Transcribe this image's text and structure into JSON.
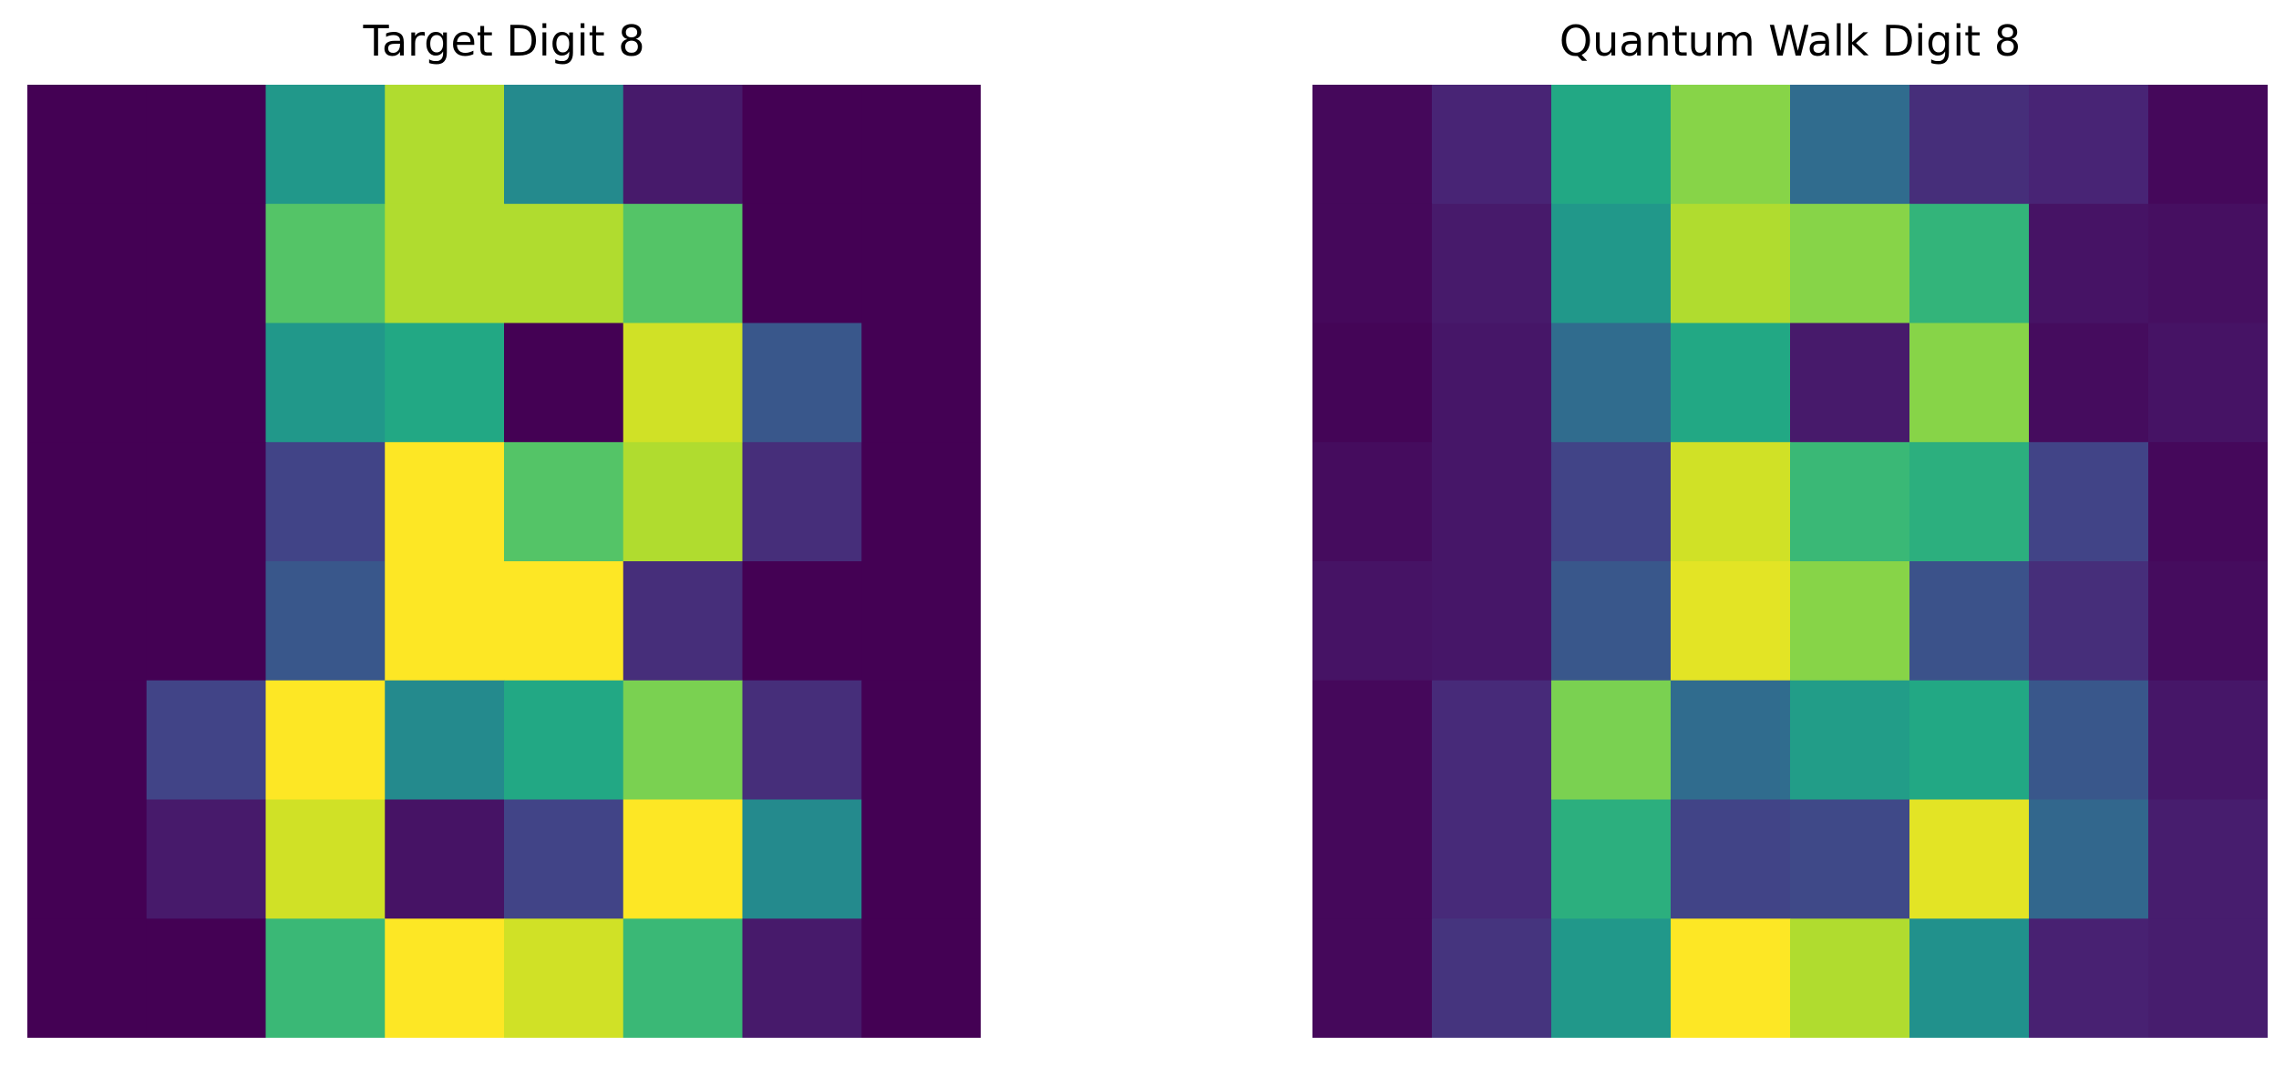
{
  "chart_data": [
    {
      "type": "heatmap",
      "title": "Target Digit 8",
      "colormap": "viridis",
      "value_range": [
        0,
        1
      ],
      "axes_visible": false,
      "grid": false,
      "values": [
        [
          0.0,
          0.0,
          0.53,
          0.88,
          0.47,
          0.07,
          0.0,
          0.0
        ],
        [
          0.0,
          0.0,
          0.73,
          0.88,
          0.88,
          0.73,
          0.0,
          0.0
        ],
        [
          0.0,
          0.0,
          0.53,
          0.6,
          0.0,
          0.93,
          0.27,
          0.0
        ],
        [
          0.0,
          0.0,
          0.2,
          1.0,
          0.73,
          0.88,
          0.13,
          0.0
        ],
        [
          0.0,
          0.0,
          0.27,
          1.0,
          1.0,
          0.13,
          0.0,
          0.0
        ],
        [
          0.0,
          0.2,
          1.0,
          0.47,
          0.6,
          0.8,
          0.13,
          0.0
        ],
        [
          0.0,
          0.07,
          0.93,
          0.05,
          0.2,
          1.0,
          0.47,
          0.0
        ],
        [
          0.0,
          0.0,
          0.67,
          1.0,
          0.93,
          0.67,
          0.07,
          0.0
        ]
      ]
    },
    {
      "type": "heatmap",
      "title": "Quantum Walk Digit 8",
      "colormap": "viridis",
      "value_range": [
        0,
        1
      ],
      "axes_visible": false,
      "grid": false,
      "values": [
        [
          0.02,
          0.1,
          0.6,
          0.82,
          0.35,
          0.13,
          0.1,
          0.02
        ],
        [
          0.02,
          0.07,
          0.53,
          0.88,
          0.82,
          0.65,
          0.05,
          0.04
        ],
        [
          0.01,
          0.06,
          0.35,
          0.6,
          0.07,
          0.82,
          0.03,
          0.05
        ],
        [
          0.03,
          0.06,
          0.2,
          0.93,
          0.67,
          0.63,
          0.2,
          0.02
        ],
        [
          0.05,
          0.06,
          0.27,
          0.96,
          0.82,
          0.25,
          0.13,
          0.03
        ],
        [
          0.02,
          0.12,
          0.8,
          0.35,
          0.55,
          0.6,
          0.27,
          0.06
        ],
        [
          0.02,
          0.12,
          0.63,
          0.2,
          0.22,
          0.96,
          0.33,
          0.08
        ],
        [
          0.02,
          0.15,
          0.53,
          1.0,
          0.88,
          0.5,
          0.09,
          0.08
        ]
      ]
    }
  ]
}
